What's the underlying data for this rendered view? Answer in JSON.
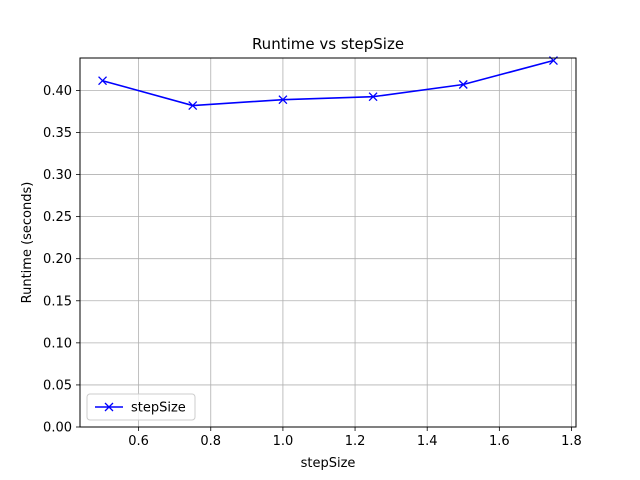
{
  "chart_data": {
    "type": "line",
    "title": "Runtime vs stepSize",
    "xlabel": "stepSize",
    "ylabel": "Runtime (seconds)",
    "xlim": [
      0.4375,
      1.8125
    ],
    "ylim": [
      0.0,
      0.4385
    ],
    "xticks": [
      0.6,
      0.8,
      1.0,
      1.2,
      1.4,
      1.6,
      1.8
    ],
    "xtick_labels": [
      "0.6",
      "0.8",
      "1.0",
      "1.2",
      "1.4",
      "1.6",
      "1.8"
    ],
    "yticks": [
      0.0,
      0.05,
      0.1,
      0.15,
      0.2,
      0.25,
      0.3,
      0.35,
      0.4
    ],
    "ytick_labels": [
      "0.00",
      "0.05",
      "0.10",
      "0.15",
      "0.20",
      "0.25",
      "0.30",
      "0.35",
      "0.40"
    ],
    "grid": true,
    "legend_position": "lower-left",
    "series": [
      {
        "name": "stepSize",
        "color": "#0000ff",
        "marker": "x",
        "x": [
          0.5,
          0.75,
          1.0,
          1.25,
          1.5,
          1.75
        ],
        "y": [
          0.4115,
          0.382,
          0.389,
          0.3925,
          0.407,
          0.4355
        ]
      }
    ]
  }
}
